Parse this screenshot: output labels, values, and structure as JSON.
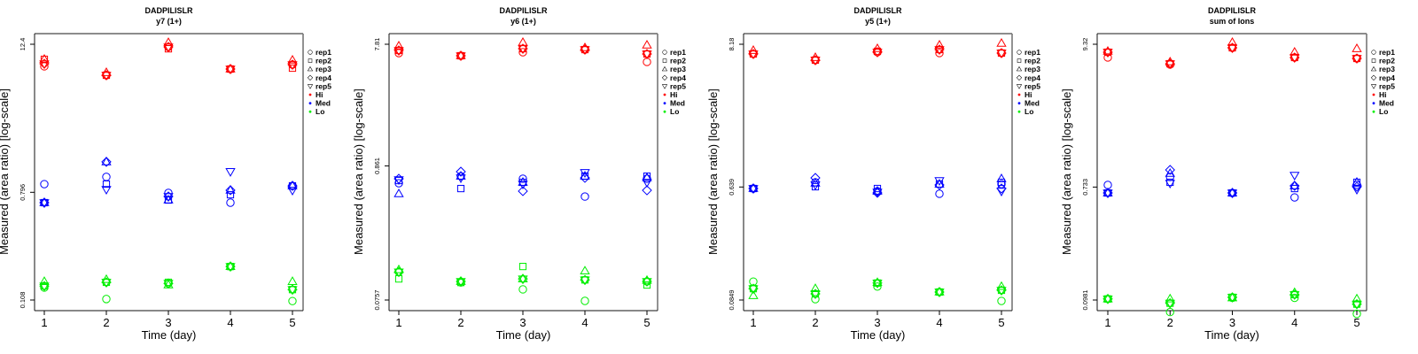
{
  "figure": {
    "panel_count": 4
  },
  "chart_data": [
    {
      "type": "scatter",
      "title": "DADPILISLR",
      "subtitle": "y7 (1+)",
      "xlabel": "Time (day)",
      "ylabel": "Measured (area ratio) [log-scale]",
      "yscale": "log",
      "x_ticks": [
        "1",
        "2",
        "3",
        "4",
        "5"
      ],
      "y_ticks": [
        {
          "label": "12.4",
          "value": 12.4
        },
        {
          "label": "0.796",
          "value": 0.796
        },
        {
          "label": "0.108",
          "value": 0.108
        }
      ],
      "ylim": [
        0.108,
        12.4
      ],
      "grid": false,
      "legend_position": "right",
      "series": [
        {
          "name": "Hi",
          "color": "#ff0000",
          "reps": {
            "rep1": [
              8.23,
              6.98,
              11.8,
              7.83,
              8.5
            ],
            "rep2": [
              9.38,
              6.98,
              11.4,
              7.83,
              7.96
            ],
            "rep3": [
              9.38,
              7.33,
              12.8,
              7.83,
              9.23
            ],
            "rep4": [
              8.64,
              6.98,
              11.8,
              7.83,
              8.5
            ],
            "rep5": [
              8.64,
              6.98,
              11.8,
              7.83,
              8.5
            ]
          }
        },
        {
          "name": "Med",
          "color": "#0000ff",
          "reps": {
            "rep1": [
              0.927,
              1.06,
              0.787,
              0.657,
              0.897
            ],
            "rep2": [
              0.657,
              0.927,
              0.69,
              0.761,
              0.897
            ],
            "rep3": [
              0.657,
              1.4,
              0.69,
              0.827,
              0.897
            ],
            "rep4": [
              0.657,
              1.4,
              0.737,
              0.827,
              0.897
            ],
            "rep5": [
              0.657,
              0.84,
              0.737,
              1.17,
              0.827
            ]
          }
        },
        {
          "name": "Lo",
          "color": "#00ee00",
          "reps": {
            "rep1": [
              0.136,
              0.11,
              0.147,
              0.201,
              0.106
            ],
            "rep2": [
              0.14,
              0.15,
              0.15,
              0.201,
              0.131
            ],
            "rep3": [
              0.152,
              0.158,
              0.143,
              0.201,
              0.152
            ],
            "rep4": [
              0.14,
              0.15,
              0.147,
              0.201,
              0.131
            ],
            "rep5": [
              0.14,
              0.15,
              0.147,
              0.201,
              0.131
            ]
          }
        }
      ]
    },
    {
      "type": "scatter",
      "title": "DADPILISLR",
      "subtitle": "y6 (1+)",
      "xlabel": "Time (day)",
      "ylabel": "Measured (area ratio) [log-scale]",
      "yscale": "log",
      "x_ticks": [
        "1",
        "2",
        "3",
        "4",
        "5"
      ],
      "y_ticks": [
        {
          "label": "7.81",
          "value": 7.81
        },
        {
          "label": "0.861",
          "value": 0.861
        },
        {
          "label": "0.0757",
          "value": 0.0757
        }
      ],
      "ylim": [
        0.0757,
        7.81
      ],
      "grid": false,
      "legend_position": "right",
      "series": [
        {
          "name": "Hi",
          "color": "#ff0000",
          "reps": {
            "rep1": [
              6.65,
              6.34,
              6.76,
              7.09,
              5.67
            ],
            "rep2": [
              6.98,
              6.34,
              7.21,
              7.09,
              6.55
            ],
            "rep3": [
              7.56,
              6.34,
              8.07,
              7.33,
              7.69
            ],
            "rep4": [
              6.98,
              6.34,
              7.21,
              7.09,
              6.55
            ],
            "rep5": [
              6.98,
              6.34,
              7.21,
              7.09,
              6.55
            ]
          }
        },
        {
          "name": "Med",
          "color": "#0000ff",
          "reps": {
            "rep1": [
              0.629,
              0.715,
              0.682,
              0.494,
              0.682
            ],
            "rep2": [
              0.66,
              0.571,
              0.639,
              0.715,
              0.715
            ],
            "rep3": [
              0.519,
              0.715,
              0.639,
              0.715,
              0.693
            ],
            "rep4": [
              0.682,
              0.775,
              0.545,
              0.693,
              0.553
            ],
            "rep5": [
              0.671,
              0.693,
              0.619,
              0.763,
              0.639
            ]
          }
        },
        {
          "name": "Lo",
          "color": "#00ee00",
          "reps": {
            "rep1": [
              0.126,
              0.104,
              0.0918,
              0.0745,
              0.106
            ],
            "rep2": [
              0.111,
              0.104,
              0.139,
              0.109,
              0.0994
            ],
            "rep3": [
              0.131,
              0.106,
              0.111,
              0.128,
              0.108
            ],
            "rep4": [
              0.126,
              0.106,
              0.111,
              0.109,
              0.106
            ],
            "rep5": [
              0.126,
              0.106,
              0.111,
              0.109,
              0.106
            ]
          }
        }
      ]
    },
    {
      "type": "scatter",
      "title": "DADPILISLR",
      "subtitle": "y5 (1+)",
      "xlabel": "Time (day)",
      "ylabel": "Measured (area ratio) [log-scale]",
      "yscale": "log",
      "x_ticks": [
        "1",
        "2",
        "3",
        "4",
        "5"
      ],
      "y_ticks": [
        {
          "label": "8.18",
          "value": 8.18
        },
        {
          "label": "0.639",
          "value": 0.639
        },
        {
          "label": "0.0849",
          "value": 0.0849
        }
      ],
      "ylim": [
        0.0849,
        8.18
      ],
      "grid": false,
      "legend_position": "right",
      "series": [
        {
          "name": "Hi",
          "color": "#ff0000",
          "reps": {
            "rep1": [
              6.88,
              6.16,
              7.1,
              6.99,
              6.99
            ],
            "rep2": [
              6.88,
              6.16,
              7.21,
              7.44,
              6.99
            ],
            "rep3": [
              7.32,
              6.45,
              7.56,
              8.05,
              8.31
            ],
            "rep4": [
              6.88,
              6.16,
              7.1,
              7.44,
              6.99
            ],
            "rep5": [
              6.88,
              6.16,
              7.1,
              7.44,
              6.99
            ]
          }
        },
        {
          "name": "Med",
          "color": "#0000ff",
          "reps": {
            "rep1": [
              0.622,
              0.695,
              0.593,
              0.566,
              0.673
            ],
            "rep2": [
              0.622,
              0.642,
              0.622,
              0.673,
              0.695
            ],
            "rep3": [
              0.622,
              0.684,
              0.593,
              0.673,
              0.74
            ],
            "rep4": [
              0.622,
              0.752,
              0.575,
              0.663,
              0.622
            ],
            "rep5": [
              0.622,
              0.663,
              0.584,
              0.717,
              0.593
            ]
          }
        },
        {
          "name": "Lo",
          "color": "#00ee00",
          "reps": {
            "rep1": [
              0.118,
              0.0862,
              0.108,
              0.0979,
              0.0835
            ],
            "rep2": [
              0.104,
              0.0948,
              0.115,
              0.0979,
              0.101
            ],
            "rep3": [
              0.0918,
              0.104,
              0.116,
              0.0979,
              0.108
            ],
            "rep4": [
              0.104,
              0.0948,
              0.115,
              0.0979,
              0.101
            ],
            "rep5": [
              0.104,
              0.0948,
              0.115,
              0.0979,
              0.101
            ]
          }
        }
      ]
    },
    {
      "type": "scatter",
      "title": "DADPILISLR",
      "subtitle": "sum of Ions",
      "xlabel": "Time (day)",
      "ylabel": "Measured (area ratio) [log-scale]",
      "yscale": "log",
      "x_ticks": [
        "1",
        "2",
        "3",
        "4",
        "5"
      ],
      "y_ticks": [
        {
          "label": "9.32",
          "value": 9.32
        },
        {
          "label": "0.733",
          "value": 0.733
        },
        {
          "label": "0.0981",
          "value": 0.0981
        }
      ],
      "ylim": [
        0.0981,
        9.32
      ],
      "grid": false,
      "legend_position": "right",
      "series": [
        {
          "name": "Hi",
          "color": "#ff0000",
          "reps": {
            "rep1": [
              7.36,
              6.49,
              8.75,
              7.36,
              7.24
            ],
            "rep2": [
              8.09,
              6.59,
              8.75,
              7.36,
              7.24
            ],
            "rep3": [
              8.22,
              6.8,
              9.62,
              8.09,
              8.61
            ],
            "rep4": [
              8.09,
              6.59,
              8.75,
              7.36,
              7.24
            ],
            "rep5": [
              8.09,
              6.59,
              8.75,
              7.36,
              7.24
            ]
          }
        },
        {
          "name": "Med",
          "color": "#0000ff",
          "reps": {
            "rep1": [
              0.761,
              0.877,
              0.66,
              0.61,
              0.761
            ],
            "rep2": [
              0.66,
              0.798,
              0.66,
              0.714,
              0.798
            ],
            "rep3": [
              0.66,
              0.934,
              0.66,
              0.749,
              0.798
            ],
            "rep4": [
              0.66,
              0.995,
              0.66,
              0.749,
              0.737
            ],
            "rep5": [
              0.66,
              0.785,
              0.66,
              0.905,
              0.703
            ]
          }
        },
        {
          "name": "Lo",
          "color": "#00ee00",
          "reps": {
            "rep1": [
              0.1,
              0.0792,
              0.102,
              0.102,
              0.0767
            ],
            "rep2": [
              0.1,
              0.0927,
              0.103,
              0.108,
              0.0912
            ],
            "rep3": [
              0.1,
              0.1,
              0.102,
              0.112,
              0.1
            ],
            "rep4": [
              0.1,
              0.0927,
              0.103,
              0.108,
              0.0912
            ],
            "rep5": [
              0.1,
              0.0927,
              0.103,
              0.108,
              0.0912
            ]
          }
        }
      ]
    }
  ],
  "legend": {
    "shapes": [
      {
        "label": "rep1",
        "symbol": "circle"
      },
      {
        "label": "rep2",
        "symbol": "square"
      },
      {
        "label": "rep3",
        "symbol": "triangle-up"
      },
      {
        "label": "rep4",
        "symbol": "diamond"
      },
      {
        "label": "rep5",
        "symbol": "triangle-down"
      }
    ],
    "colors": [
      {
        "label": "Hi",
        "color": "#ff0000"
      },
      {
        "label": "Med",
        "color": "#0000ff"
      },
      {
        "label": "Lo",
        "color": "#00ee00"
      }
    ]
  }
}
